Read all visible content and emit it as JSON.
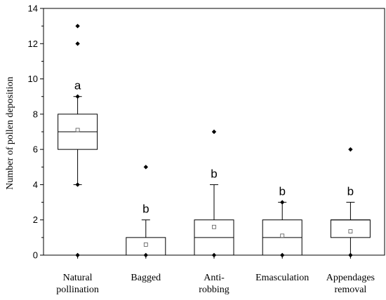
{
  "chart_data": {
    "type": "boxplot",
    "ylabel": "Number of pollen deposition",
    "xlabel": "",
    "ylim": [
      0,
      14
    ],
    "yticks": [
      0,
      2,
      4,
      6,
      8,
      10,
      12,
      14
    ],
    "grid": false,
    "categories": [
      [
        "Natural",
        "pollination"
      ],
      [
        "Bagged"
      ],
      [
        "Anti-",
        "robbing"
      ],
      [
        "Emasculation"
      ],
      [
        "Appendages",
        "removal"
      ]
    ],
    "boxes": [
      {
        "q1": 6,
        "median": 7,
        "q3": 8,
        "mean": 7.1,
        "whisker_low": 4,
        "whisker_high": 9,
        "outliers": [
          0,
          4,
          9,
          12,
          13
        ],
        "significance": "a"
      },
      {
        "q1": 0,
        "median": 0,
        "q3": 1,
        "mean": 0.6,
        "whisker_low": 0,
        "whisker_high": 2,
        "outliers": [
          0,
          5
        ],
        "significance": "b"
      },
      {
        "q1": 0,
        "median": 1,
        "q3": 2,
        "mean": 1.6,
        "whisker_low": 0,
        "whisker_high": 4,
        "outliers": [
          0,
          7
        ],
        "significance": "b"
      },
      {
        "q1": 0,
        "median": 1,
        "q3": 2,
        "mean": 1.1,
        "whisker_low": 0,
        "whisker_high": 3,
        "outliers": [
          0,
          3
        ],
        "significance": "b"
      },
      {
        "q1": 1,
        "median": 2,
        "q3": 2,
        "mean": 1.35,
        "whisker_low": 0,
        "whisker_high": 3,
        "outliers": [
          0,
          6
        ],
        "significance": "b"
      }
    ]
  }
}
